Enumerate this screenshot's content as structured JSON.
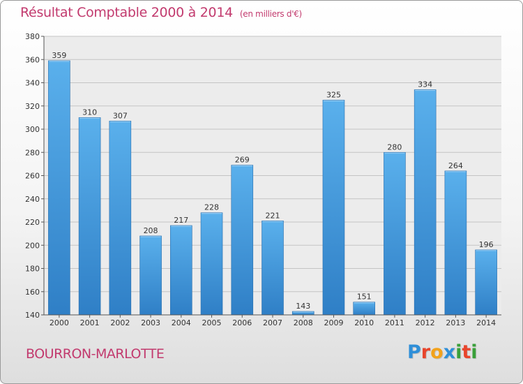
{
  "header": {
    "title": "Résultat Comptable 2000 à 2014",
    "unit": "(en milliers d'€)"
  },
  "footer": {
    "commune": "BOURRON-MARLOTTE",
    "logo_letters": [
      "P",
      "r",
      "o",
      "x",
      "i",
      "t",
      "i"
    ],
    "logo_colors": [
      "#2f8fd8",
      "#e8452c",
      "#f2a21b",
      "#2f8fd8",
      "#3aa03a",
      "#e8452c",
      "#3aa03a"
    ]
  },
  "chart_data": {
    "type": "bar",
    "title": "Résultat Comptable 2000 à 2014",
    "subtitle": "(en milliers d'€)",
    "categories": [
      "2000",
      "2001",
      "2002",
      "2003",
      "2004",
      "2005",
      "2006",
      "2007",
      "2008",
      "2009",
      "2010",
      "2011",
      "2012",
      "2013",
      "2014"
    ],
    "values": [
      359,
      310,
      307,
      208,
      217,
      228,
      269,
      221,
      143,
      325,
      151,
      280,
      334,
      264,
      196
    ],
    "ylim": [
      140,
      380
    ],
    "yticks": [
      140,
      160,
      180,
      200,
      220,
      240,
      260,
      280,
      300,
      320,
      340,
      360,
      380
    ],
    "grid": true,
    "bar_color": "#3a8fd6",
    "xlabel": "",
    "ylabel": ""
  }
}
